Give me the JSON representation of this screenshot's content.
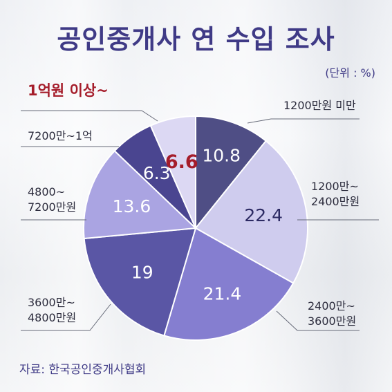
{
  "title": "공인중개사 연 수입 조사",
  "unit": "(단위 : %)",
  "source": "자료: 한국공인중개사협회",
  "chart_data": {
    "type": "pie",
    "title": "공인중개사 연 수입 조사",
    "unit": "(단위 : %)",
    "categories": [
      "1200만원 미만",
      "1200만~ 2400만원",
      "2400만~ 3600만원",
      "3600만~ 4800만원",
      "4800~ 7200만원",
      "7200만~1억",
      "1억원 이상~"
    ],
    "values": [
      10.8,
      22.4,
      21.4,
      19,
      13.6,
      6.3,
      6.6
    ],
    "value_labels": [
      "10.8",
      "22.4",
      "21.4",
      "19",
      "13.6",
      "6.3",
      "6.6"
    ],
    "colors": [
      "#4f4e85",
      "#cfccee",
      "#857ed0",
      "#5a56a5",
      "#aaa4e2",
      "#4a4590",
      "#dcd8f3"
    ],
    "highlight": {
      "index": 6,
      "label_color": "#a51d2b"
    }
  }
}
